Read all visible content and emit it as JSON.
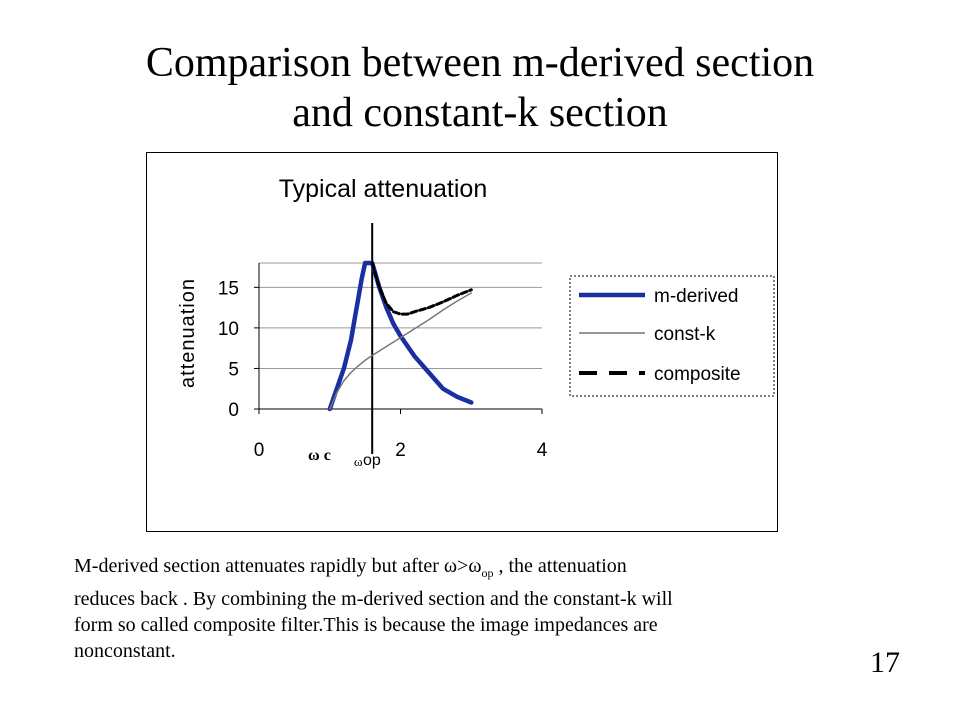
{
  "slide": {
    "title_line1": "Comparison between m-derived section",
    "title_line2": "and constant-k section",
    "caption": {
      "line1_before": "M-derived  section attenuates rapidly but after ",
      "omega": "ω",
      "gt": ">",
      "omega2": "ω",
      "op_sub": "op",
      "line1_after": " , the attenuation",
      "line2": "reduces back . By combining the m-derived section and the constant-k will",
      "line3": "form so called composite filter.This is because the image impedances are",
      "line4": "nonconstant."
    },
    "page_number": "17"
  },
  "chart_data": {
    "type": "line",
    "title": "Typical attenuation",
    "ylabel": "attenuation",
    "xlabel": "",
    "xlim": [
      0,
      4
    ],
    "ylim": [
      0,
      18
    ],
    "x_ticks": [
      "0",
      "2",
      "4"
    ],
    "y_ticks": [
      "0",
      "5",
      "10",
      "15"
    ],
    "grid": "horizontal",
    "legend_position": "right",
    "annotations": {
      "omega_c": "ω c",
      "omega_op_symbol": "ω",
      "omega_op_text": "op"
    },
    "series": [
      {
        "name": "m-derived",
        "color": "#1a2fa0",
        "style": "solid-thick",
        "x": [
          1.0,
          1.1,
          1.2,
          1.3,
          1.35,
          1.4,
          1.45,
          1.5,
          1.6,
          1.7,
          1.8,
          1.9,
          2.0,
          2.2,
          2.4,
          2.6,
          2.8,
          3.0
        ],
        "y": [
          0,
          2.5,
          5,
          8.5,
          11,
          13.5,
          16,
          18,
          18,
          15,
          12.5,
          10.5,
          9,
          6.5,
          4.5,
          2.5,
          1.5,
          0.8
        ]
      },
      {
        "name": "const-k",
        "color": "#777777",
        "style": "thin",
        "x": [
          1.0,
          1.1,
          1.2,
          1.3,
          1.4,
          1.5,
          1.6,
          1.8,
          2.0,
          2.2,
          2.4,
          2.6,
          2.8,
          3.0
        ],
        "y": [
          0,
          2,
          3.5,
          4.5,
          5.3,
          6,
          6.6,
          7.7,
          8.8,
          9.9,
          11,
          12.2,
          13.3,
          14.3
        ]
      },
      {
        "name": "composite",
        "color": "#000000",
        "style": "dashed",
        "x": [
          1.6,
          1.7,
          1.8,
          1.9,
          2.0,
          2.1,
          2.2,
          2.4,
          2.6,
          2.8,
          3.0
        ],
        "y": [
          18,
          15,
          13,
          12,
          11.7,
          11.7,
          12,
          12.5,
          13.2,
          14,
          14.7
        ]
      }
    ]
  }
}
